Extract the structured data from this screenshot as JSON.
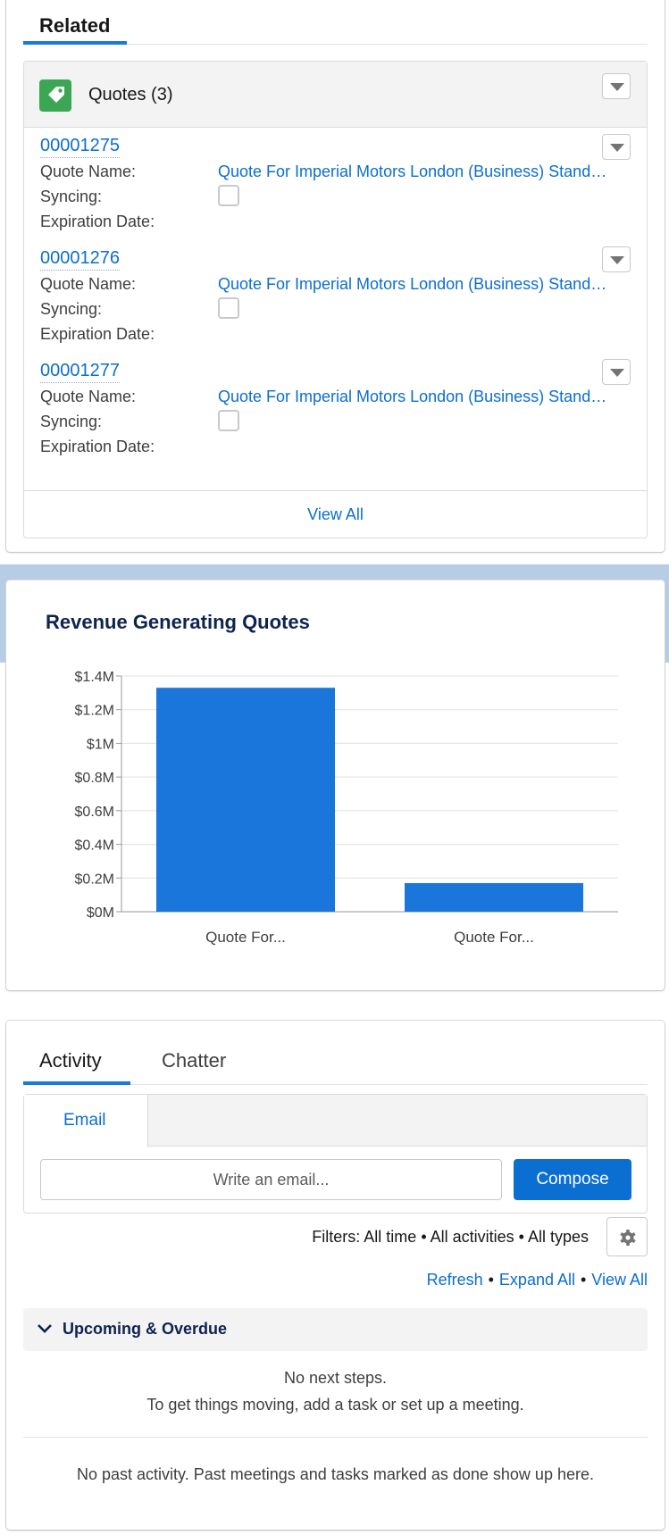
{
  "related": {
    "tab_label": "Related",
    "quotes": {
      "title": "Quotes (3)",
      "labels": {
        "quote_name": "Quote Name:",
        "syncing": "Syncing:",
        "expiration": "Expiration Date:"
      },
      "items": [
        {
          "number": "00001275",
          "name": "Quote For Imperial Motors London (Business) Stand…",
          "syncing": false
        },
        {
          "number": "00001276",
          "name": "Quote For Imperial Motors London (Business) Stand…",
          "syncing": false
        },
        {
          "number": "00001277",
          "name": "Quote For Imperial Motors London (Business) Stand…",
          "syncing": false
        }
      ],
      "view_all": "View All"
    }
  },
  "chart": {
    "title": "Revenue Generating Quotes"
  },
  "chart_data": {
    "type": "bar",
    "title": "Revenue Generating Quotes",
    "categories": [
      "Quote For...",
      "Quote For..."
    ],
    "values": [
      1.33,
      0.17
    ],
    "value_unit": "$M",
    "ylim": [
      0,
      1.4
    ],
    "yticks": [
      "$0M",
      "$0.2M",
      "$0.4M",
      "$0.6M",
      "$0.8M",
      "$1M",
      "$1.2M",
      "$1.4M"
    ],
    "ytick_values": [
      0,
      0.2,
      0.4,
      0.6,
      0.8,
      1.0,
      1.2,
      1.4
    ],
    "xlabel": "",
    "ylabel": "",
    "grid": true,
    "bar_color": "#1b76dc"
  },
  "activity": {
    "tabs": [
      "Activity",
      "Chatter"
    ],
    "email_tab": "Email",
    "email_placeholder": "Write an email...",
    "compose_label": "Compose",
    "filters": "Filters: All time • All activities • All types",
    "links": {
      "refresh": "Refresh",
      "expand_all": "Expand All",
      "view_all": "View All"
    },
    "upcoming_label": "Upcoming & Overdue",
    "no_next_1": "No next steps.",
    "no_next_2": "To get things moving, add a task or set up a meeting.",
    "no_past": "No past activity. Past meetings and tasks marked as done show up here."
  },
  "colors": {
    "brand_blue": "#0b6ed1",
    "quotes_icon": "#3ba755",
    "bar": "#1b76dc"
  }
}
